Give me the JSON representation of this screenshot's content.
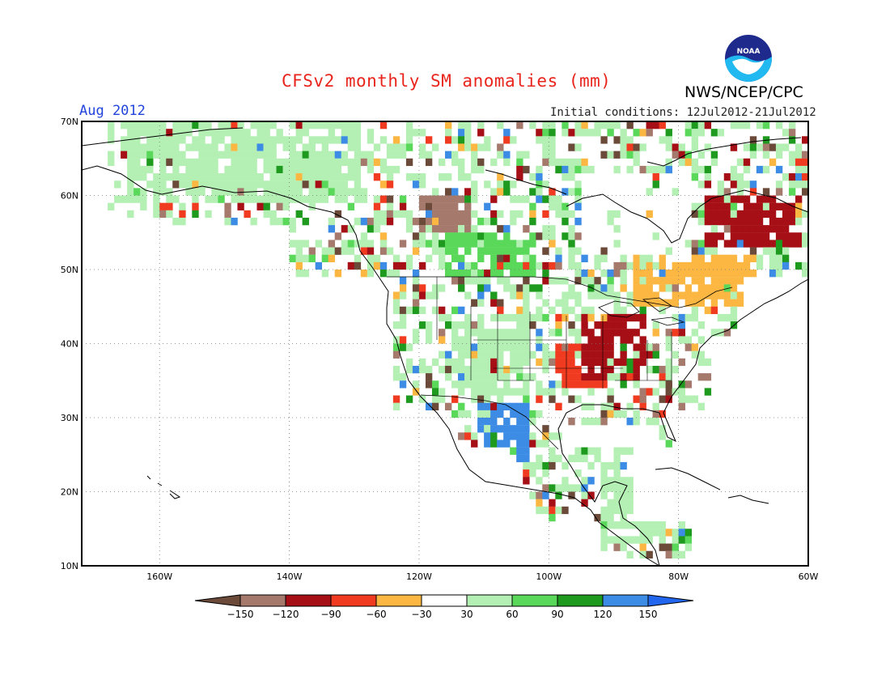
{
  "header": {
    "title": "CFSv2 monthly SM anomalies (mm)",
    "valid_month": "Aug 2012",
    "organization": "NWS/NCEP/CPC",
    "initial_conditions": "Initial conditions: 12Jul2012-21Jul2012",
    "logo_text": "NOAA"
  },
  "map": {
    "lon_range": [
      -172,
      -60
    ],
    "lat_range": [
      10,
      70
    ],
    "lat_ticks": [
      "10N",
      "20N",
      "30N",
      "40N",
      "50N",
      "60N",
      "70N"
    ],
    "lon_ticks": [
      "160W",
      "140W",
      "120W",
      "100W",
      "80W",
      "60W"
    ],
    "grid": true
  },
  "colorbar": {
    "labels": [
      "-150",
      "-120",
      "-90",
      "-60",
      "-30",
      "30",
      "60",
      "90",
      "120",
      "150"
    ],
    "colors": [
      "#6b4a3a",
      "#a57a6d",
      "#a50f15",
      "#f03b20",
      "#fcb742",
      "#ffffff",
      "#b4f0b4",
      "#5ad85a",
      "#1e9a1e",
      "#3c8ce6",
      "#2266ee"
    ]
  },
  "anomaly_regions": [
    {
      "name": "us-midwest-drought",
      "lon": [
        -95,
        -86
      ],
      "lat": [
        35,
        43
      ],
      "category": "-90"
    },
    {
      "name": "us-central-plains-dry",
      "lon": [
        -99,
        -92
      ],
      "lat": [
        34,
        39
      ],
      "category": "-60"
    },
    {
      "name": "quebec-labrador-dry",
      "lon": [
        -76,
        -62
      ],
      "lat": [
        53,
        59
      ],
      "category": "-90"
    },
    {
      "name": "great-lakes-dry",
      "lon": [
        -87,
        -69
      ],
      "lat": [
        45,
        51
      ],
      "category": "-30"
    },
    {
      "name": "western-canada-dry",
      "lon": [
        -121,
        -113
      ],
      "lat": [
        55,
        59
      ],
      "category": "-120"
    },
    {
      "name": "canadian-prairies-wet",
      "lon": [
        -116,
        -103
      ],
      "lat": [
        49,
        54
      ],
      "category": "90"
    },
    {
      "name": "sierra-madre-wet",
      "lon": [
        -111,
        -104
      ],
      "lat": [
        24,
        31
      ],
      "category": "150"
    },
    {
      "name": "rockies-wet",
      "lon": [
        -114,
        -104
      ],
      "lat": [
        33,
        43
      ],
      "category": "60"
    },
    {
      "name": "alaska-wet",
      "lon": [
        -165,
        -130
      ],
      "lat": [
        59,
        69
      ],
      "category": "60"
    },
    {
      "name": "central-america-wet",
      "lon": [
        -92,
        -83
      ],
      "lat": [
        13,
        21
      ],
      "category": "60"
    }
  ]
}
